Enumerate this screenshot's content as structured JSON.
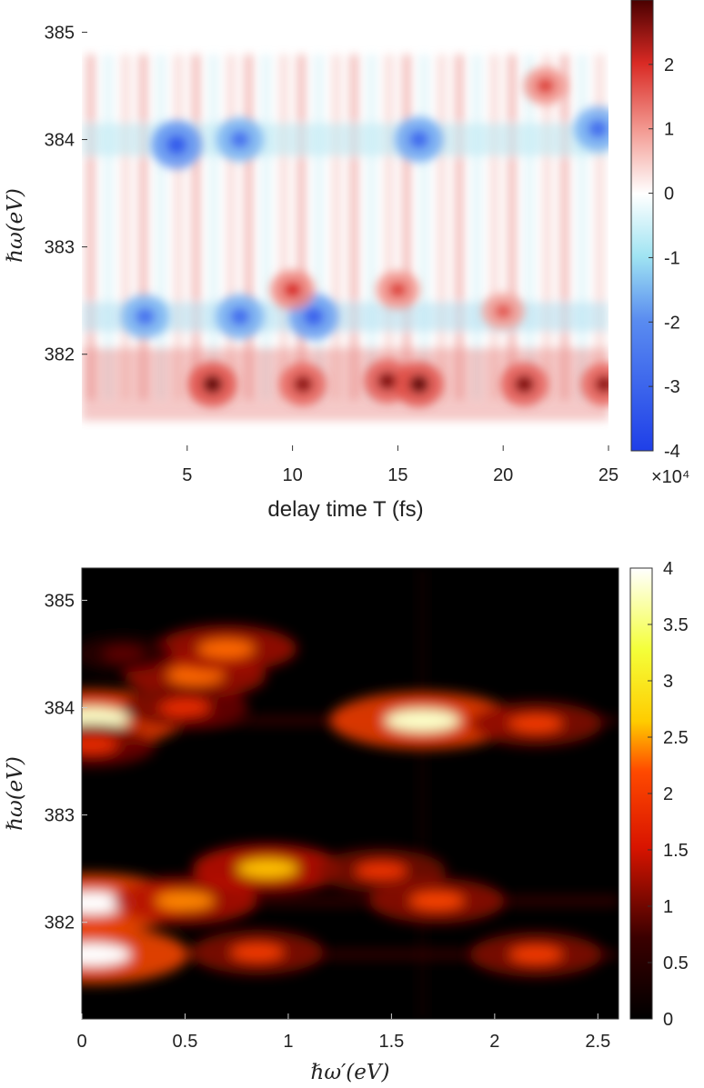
{
  "chart_data": [
    {
      "type": "heatmap",
      "xlabel": "delay time T (fs)",
      "ylabel": "ℏω(eV)",
      "x_multiplier": "×10⁴",
      "xlim": [
        0,
        25
      ],
      "ylim": [
        381.1,
        385.3
      ],
      "x_ticks": [
        5,
        10,
        15,
        20,
        25
      ],
      "x_tick_labels": [
        "5",
        "10",
        "15",
        "20",
        "25"
      ],
      "y_ticks": [
        382,
        383,
        384,
        385
      ],
      "y_tick_labels": [
        "382",
        "383",
        "384",
        "385"
      ],
      "colorbar": {
        "colormap": "blue-white-red",
        "range": [
          -4,
          3
        ],
        "ticks": [
          -4,
          -3,
          -2,
          -1,
          0,
          1,
          2
        ],
        "tick_labels": [
          "-4",
          "-3",
          "-2",
          "-1",
          "0",
          "1",
          "2"
        ]
      },
      "blobs": [
        {
          "x": 6.2,
          "y": 381.72,
          "value": 2.8
        },
        {
          "x": 10.5,
          "y": 381.72,
          "value": 2.5
        },
        {
          "x": 14.5,
          "y": 381.75,
          "value": 2.6
        },
        {
          "x": 16.0,
          "y": 381.72,
          "value": 2.8
        },
        {
          "x": 21.0,
          "y": 381.72,
          "value": 2.6
        },
        {
          "x": 24.8,
          "y": 381.72,
          "value": 2.5
        },
        {
          "x": 3.0,
          "y": 382.35,
          "value": -2.6
        },
        {
          "x": 7.5,
          "y": 382.35,
          "value": -2.7
        },
        {
          "x": 11.0,
          "y": 382.35,
          "value": -3.0
        },
        {
          "x": 4.5,
          "y": 383.95,
          "value": -3.2
        },
        {
          "x": 7.5,
          "y": 384.0,
          "value": -2.6
        },
        {
          "x": 16.0,
          "y": 384.0,
          "value": -2.8
        },
        {
          "x": 24.5,
          "y": 384.1,
          "value": -2.7
        },
        {
          "x": 10.0,
          "y": 382.6,
          "value": 2.0
        },
        {
          "x": 15.0,
          "y": 382.6,
          "value": 1.8
        },
        {
          "x": 22.0,
          "y": 384.5,
          "value": 1.8
        },
        {
          "x": 20.0,
          "y": 382.4,
          "value": 1.6
        }
      ]
    },
    {
      "type": "heatmap",
      "xlabel": "ℏω′(eV)",
      "ylabel": "ℏω(eV)",
      "xlim": [
        0,
        2.6
      ],
      "ylim": [
        381.1,
        385.3
      ],
      "x_ticks": [
        0,
        0.5,
        1,
        1.5,
        2,
        2.5
      ],
      "x_tick_labels": [
        "0",
        "0.5",
        "1",
        "1.5",
        "2",
        "2.5"
      ],
      "y_ticks": [
        382,
        383,
        384,
        385
      ],
      "y_tick_labels": [
        "382",
        "383",
        "384",
        "385"
      ],
      "colorbar": {
        "colormap": "hot",
        "range": [
          0,
          4
        ],
        "ticks": [
          0,
          0.5,
          1,
          1.5,
          2,
          2.5,
          3,
          3.5,
          4
        ],
        "tick_labels": [
          "0",
          "0.5",
          "1",
          "1.5",
          "2",
          "2.5",
          "3",
          "3.5",
          "4"
        ]
      },
      "blobs": [
        {
          "x": 0.05,
          "y": 381.7,
          "value": 4.0
        },
        {
          "x": 0.05,
          "y": 382.18,
          "value": 4.0
        },
        {
          "x": 0.05,
          "y": 383.9,
          "value": 3.8
        },
        {
          "x": 0.05,
          "y": 383.65,
          "value": 1.8
        },
        {
          "x": 0.5,
          "y": 382.2,
          "value": 2.4
        },
        {
          "x": 0.9,
          "y": 382.5,
          "value": 2.6
        },
        {
          "x": 0.85,
          "y": 381.72,
          "value": 2.0
        },
        {
          "x": 0.55,
          "y": 384.3,
          "value": 2.3
        },
        {
          "x": 0.7,
          "y": 384.55,
          "value": 2.3
        },
        {
          "x": 0.5,
          "y": 384.0,
          "value": 1.8
        },
        {
          "x": 1.45,
          "y": 382.48,
          "value": 1.9
        },
        {
          "x": 1.65,
          "y": 383.88,
          "value": 3.8
        },
        {
          "x": 1.72,
          "y": 382.2,
          "value": 2.1
        },
        {
          "x": 2.2,
          "y": 383.85,
          "value": 2.0
        },
        {
          "x": 2.2,
          "y": 381.7,
          "value": 2.0
        },
        {
          "x": 0.2,
          "y": 384.5,
          "value": 0.9
        }
      ]
    }
  ]
}
